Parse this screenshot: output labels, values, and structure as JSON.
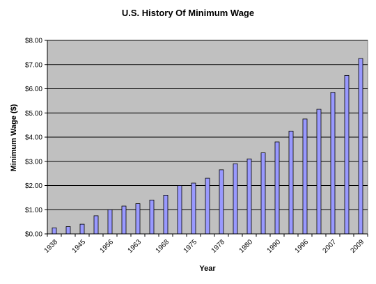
{
  "chart_data": {
    "type": "bar",
    "title": "U.S. History Of Minimum Wage",
    "xlabel": "Year",
    "ylabel": "Minimum Wage ($)",
    "ylim": [
      0,
      8
    ],
    "y_ticks": [
      "$0.00",
      "$1.00",
      "$2.00",
      "$3.00",
      "$4.00",
      "$5.00",
      "$6.00",
      "$7.00",
      "$8.00"
    ],
    "x_tick_labels": [
      "1938",
      "1945",
      "1956",
      "1963",
      "1968",
      "1975",
      "1978",
      "1980",
      "1990",
      "1996",
      "2007",
      "2009"
    ],
    "values": [
      0.25,
      0.3,
      0.4,
      0.75,
      1.0,
      1.15,
      1.25,
      1.4,
      1.6,
      2.0,
      2.1,
      2.3,
      2.65,
      2.9,
      3.1,
      3.35,
      3.8,
      4.25,
      4.75,
      5.15,
      5.85,
      6.55,
      7.25
    ],
    "grid": true,
    "legend": "none",
    "colors": {
      "bar_fill": "#9999ff",
      "bar_stroke": "#000000",
      "plot_background": "#c0c0c0",
      "gridline": "#000000"
    }
  }
}
